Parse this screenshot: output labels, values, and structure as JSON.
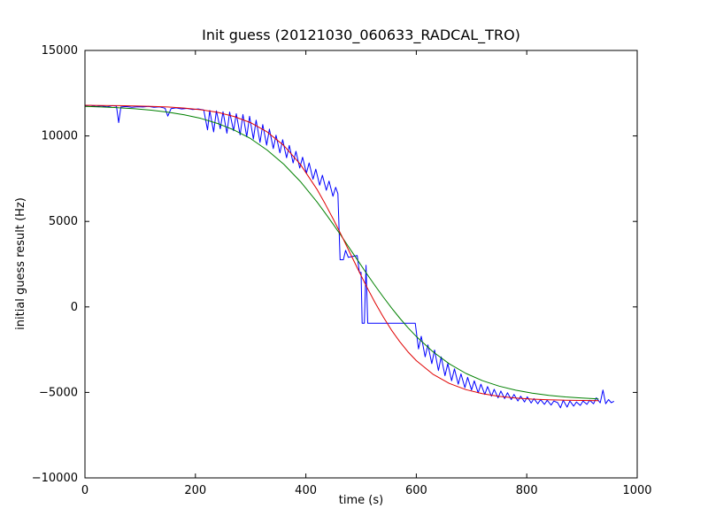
{
  "chart_data": {
    "type": "line",
    "title": "Init guess (20121030_060633_RADCAL_TRO)",
    "xlabel": "time (s)",
    "ylabel": "initial guess result (Hz)",
    "xlim": [
      0,
      1000
    ],
    "ylim": [
      -10000,
      15000
    ],
    "xticks": [
      0,
      200,
      400,
      600,
      800,
      1000
    ],
    "yticks": [
      -10000,
      -5000,
      0,
      5000,
      10000,
      15000
    ],
    "grid": false,
    "legend": "none",
    "frame_color": "#000000",
    "series": [
      {
        "name": "initial-guess-data",
        "color": "#0000ff",
        "points": [
          [
            0,
            11750
          ],
          [
            10,
            11790
          ],
          [
            20,
            11720
          ],
          [
            30,
            11760
          ],
          [
            40,
            11700
          ],
          [
            50,
            11770
          ],
          [
            57,
            11740
          ],
          [
            61,
            10780
          ],
          [
            65,
            11690
          ],
          [
            75,
            11720
          ],
          [
            85,
            11670
          ],
          [
            95,
            11710
          ],
          [
            105,
            11690
          ],
          [
            115,
            11730
          ],
          [
            125,
            11670
          ],
          [
            135,
            11700
          ],
          [
            145,
            11620
          ],
          [
            150,
            11160
          ],
          [
            156,
            11600
          ],
          [
            165,
            11640
          ],
          [
            175,
            11580
          ],
          [
            185,
            11610
          ],
          [
            195,
            11550
          ],
          [
            205,
            11580
          ],
          [
            215,
            11520
          ],
          [
            222,
            10350
          ],
          [
            226,
            11490
          ],
          [
            233,
            10240
          ],
          [
            238,
            11470
          ],
          [
            245,
            10420
          ],
          [
            250,
            11420
          ],
          [
            257,
            10160
          ],
          [
            262,
            11400
          ],
          [
            269,
            10300
          ],
          [
            274,
            11300
          ],
          [
            281,
            10060
          ],
          [
            286,
            11250
          ],
          [
            293,
            9950
          ],
          [
            298,
            11150
          ],
          [
            305,
            9820
          ],
          [
            310,
            10920
          ],
          [
            317,
            9620
          ],
          [
            322,
            10660
          ],
          [
            329,
            9460
          ],
          [
            334,
            10400
          ],
          [
            341,
            9260
          ],
          [
            346,
            10040
          ],
          [
            353,
            9010
          ],
          [
            358,
            9780
          ],
          [
            365,
            8720
          ],
          [
            370,
            9440
          ],
          [
            377,
            8420
          ],
          [
            382,
            9100
          ],
          [
            389,
            8120
          ],
          [
            394,
            8760
          ],
          [
            401,
            7820
          ],
          [
            406,
            8420
          ],
          [
            413,
            7470
          ],
          [
            418,
            8060
          ],
          [
            425,
            7120
          ],
          [
            430,
            7700
          ],
          [
            437,
            6820
          ],
          [
            442,
            7360
          ],
          [
            449,
            6470
          ],
          [
            454,
            7000
          ],
          [
            458,
            6620
          ],
          [
            462,
            2760
          ],
          [
            468,
            2760
          ],
          [
            472,
            3310
          ],
          [
            477,
            2900
          ],
          [
            485,
            2950
          ],
          [
            493,
            3000
          ],
          [
            497,
            2020
          ],
          [
            500,
            2020
          ],
          [
            502,
            -950
          ],
          [
            506,
            -950
          ],
          [
            509,
            2440
          ],
          [
            512,
            -950
          ],
          [
            535,
            -950
          ],
          [
            565,
            -950
          ],
          [
            598,
            -950
          ],
          [
            604,
            -2460
          ],
          [
            609,
            -1720
          ],
          [
            616,
            -2920
          ],
          [
            621,
            -2220
          ],
          [
            628,
            -3320
          ],
          [
            633,
            -2520
          ],
          [
            640,
            -3720
          ],
          [
            645,
            -2920
          ],
          [
            652,
            -4020
          ],
          [
            657,
            -3320
          ],
          [
            664,
            -4320
          ],
          [
            669,
            -3620
          ],
          [
            676,
            -4520
          ],
          [
            681,
            -3920
          ],
          [
            688,
            -4720
          ],
          [
            693,
            -4120
          ],
          [
            700,
            -4860
          ],
          [
            705,
            -4320
          ],
          [
            712,
            -5020
          ],
          [
            717,
            -4520
          ],
          [
            724,
            -5120
          ],
          [
            729,
            -4660
          ],
          [
            736,
            -5220
          ],
          [
            741,
            -4820
          ],
          [
            748,
            -5320
          ],
          [
            753,
            -4920
          ],
          [
            760,
            -5360
          ],
          [
            765,
            -5020
          ],
          [
            772,
            -5420
          ],
          [
            777,
            -5120
          ],
          [
            784,
            -5500
          ],
          [
            789,
            -5220
          ],
          [
            796,
            -5560
          ],
          [
            801,
            -5260
          ],
          [
            808,
            -5620
          ],
          [
            813,
            -5360
          ],
          [
            820,
            -5660
          ],
          [
            825,
            -5420
          ],
          [
            832,
            -5700
          ],
          [
            837,
            -5460
          ],
          [
            844,
            -5740
          ],
          [
            849,
            -5500
          ],
          [
            856,
            -5600
          ],
          [
            861,
            -5900
          ],
          [
            866,
            -5460
          ],
          [
            873,
            -5860
          ],
          [
            878,
            -5500
          ],
          [
            885,
            -5800
          ],
          [
            890,
            -5560
          ],
          [
            897,
            -5760
          ],
          [
            902,
            -5500
          ],
          [
            909,
            -5700
          ],
          [
            914,
            -5460
          ],
          [
            921,
            -5660
          ],
          [
            926,
            -5310
          ],
          [
            933,
            -5610
          ],
          [
            938,
            -4860
          ],
          [
            943,
            -5660
          ],
          [
            948,
            -5420
          ],
          [
            953,
            -5600
          ],
          [
            958,
            -5520
          ]
        ]
      },
      {
        "name": "fit-curve-green",
        "color": "#008000",
        "points": [
          [
            0,
            11722
          ],
          [
            30,
            11692
          ],
          [
            60,
            11651
          ],
          [
            90,
            11588
          ],
          [
            120,
            11507
          ],
          [
            150,
            11391
          ],
          [
            180,
            11236
          ],
          [
            210,
            11025
          ],
          [
            240,
            10731
          ],
          [
            270,
            10347
          ],
          [
            300,
            9844
          ],
          [
            330,
            9173
          ],
          [
            360,
            8351
          ],
          [
            390,
            7334
          ],
          [
            420,
            6142
          ],
          [
            435,
            5493
          ],
          [
            450,
            4813
          ],
          [
            465,
            4108
          ],
          [
            480,
            3390
          ],
          [
            495,
            2670
          ],
          [
            510,
            1957
          ],
          [
            525,
            1259
          ],
          [
            540,
            587
          ],
          [
            555,
            -54
          ],
          [
            570,
            -655
          ],
          [
            585,
            -1215
          ],
          [
            600,
            -1730
          ],
          [
            630,
            -2621
          ],
          [
            660,
            -3335
          ],
          [
            690,
            -3892
          ],
          [
            720,
            -4316
          ],
          [
            750,
            -4635
          ],
          [
            780,
            -4871
          ],
          [
            810,
            -5045
          ],
          [
            840,
            -5171
          ],
          [
            870,
            -5263
          ],
          [
            900,
            -5330
          ],
          [
            930,
            -5378
          ]
        ]
      },
      {
        "name": "fit-curve-red",
        "color": "#e00000",
        "points": [
          [
            0,
            11789
          ],
          [
            30,
            11783
          ],
          [
            60,
            11772
          ],
          [
            90,
            11757
          ],
          [
            120,
            11731
          ],
          [
            150,
            11694
          ],
          [
            180,
            11630
          ],
          [
            210,
            11533
          ],
          [
            240,
            11380
          ],
          [
            270,
            11139
          ],
          [
            300,
            10776
          ],
          [
            330,
            10233
          ],
          [
            360,
            9444
          ],
          [
            390,
            8338
          ],
          [
            420,
            6884
          ],
          [
            435,
            6030
          ],
          [
            450,
            5113
          ],
          [
            465,
            4144
          ],
          [
            480,
            3150
          ],
          [
            495,
            2156
          ],
          [
            510,
            1189
          ],
          [
            525,
            270
          ],
          [
            540,
            -581
          ],
          [
            555,
            -1352
          ],
          [
            570,
            -2036
          ],
          [
            585,
            -2631
          ],
          [
            600,
            -3141
          ],
          [
            630,
            -3934
          ],
          [
            660,
            -4479
          ],
          [
            690,
            -4842
          ],
          [
            720,
            -5079
          ],
          [
            750,
            -5233
          ],
          [
            780,
            -5330
          ],
          [
            810,
            -5393
          ],
          [
            840,
            -5432
          ],
          [
            870,
            -5457
          ],
          [
            900,
            -5473
          ],
          [
            930,
            -5483
          ]
        ]
      }
    ]
  }
}
